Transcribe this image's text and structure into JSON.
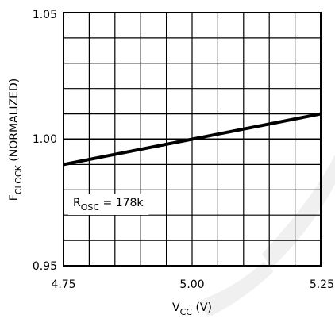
{
  "chart_data": {
    "type": "line",
    "xlabel": {
      "main": "V",
      "sub": "CC",
      "unit": " (V)"
    },
    "ylabel": {
      "main": "F",
      "sub": "CLOCK",
      "rest": " (NORMALIZED)"
    },
    "xlim": [
      4.75,
      5.25
    ],
    "ylim": [
      0.95,
      1.05
    ],
    "x_ticks": [
      "4.75",
      "5.00",
      "5.25"
    ],
    "y_ticks": [
      "1.05",
      "1.00",
      "0.95"
    ],
    "annotation": {
      "main": "R",
      "sub": "OSC",
      "rest": " = 178k"
    },
    "grid": true,
    "series": [
      {
        "x": [
          4.75,
          5.25
        ],
        "y": [
          0.99,
          1.01
        ]
      }
    ],
    "colors": {
      "line": "#000000",
      "grid": "#000000",
      "watermark": "#eeeeee"
    }
  }
}
